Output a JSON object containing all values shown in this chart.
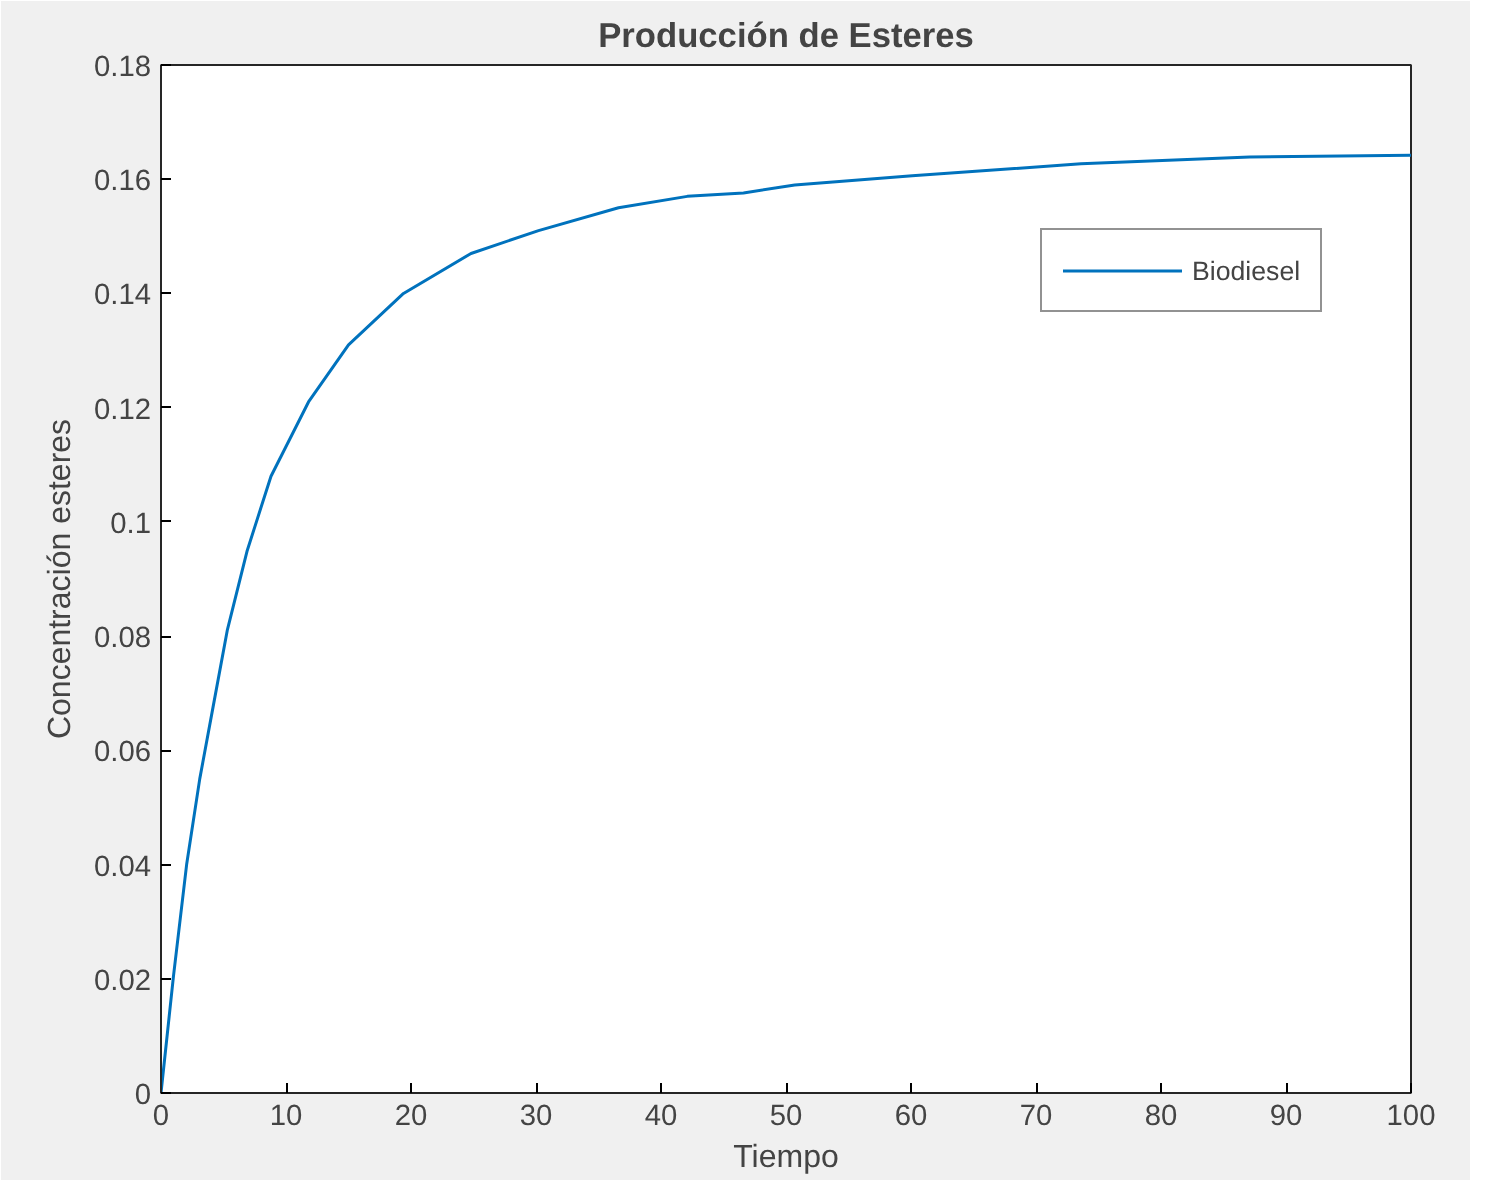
{
  "chart_data": {
    "type": "line",
    "title": "Producción de Esteres",
    "xlabel": "Tiempo",
    "ylabel": "Concentración esteres",
    "xlim": [
      0,
      100
    ],
    "ylim": [
      0,
      0.18
    ],
    "xticks": [
      0,
      10,
      20,
      30,
      40,
      50,
      60,
      70,
      80,
      90,
      100
    ],
    "yticks": [
      0,
      0.02,
      0.04,
      0.06,
      0.08,
      0.1,
      0.12,
      0.14,
      0.16,
      0.18
    ],
    "grid": false,
    "legend": "top right",
    "series": [
      {
        "name": "Biodiesel",
        "color": "#0072bd",
        "x": [
          0,
          1.0,
          2.05,
          3.1,
          4.2,
          5.3,
          6.9,
          8.8,
          11.8,
          15.0,
          19.4,
          24.8,
          30.2,
          36.6,
          42.1,
          46.6,
          50.7,
          60.1,
          73.6,
          87.1,
          100
        ],
        "values": [
          0,
          0.0205,
          0.04,
          0.055,
          0.068,
          0.081,
          0.095,
          0.108,
          0.121,
          0.131,
          0.14,
          0.147,
          0.151,
          0.155,
          0.157,
          0.1576,
          0.159,
          0.1606,
          0.1627,
          0.1639,
          0.1642
        ]
      }
    ]
  }
}
